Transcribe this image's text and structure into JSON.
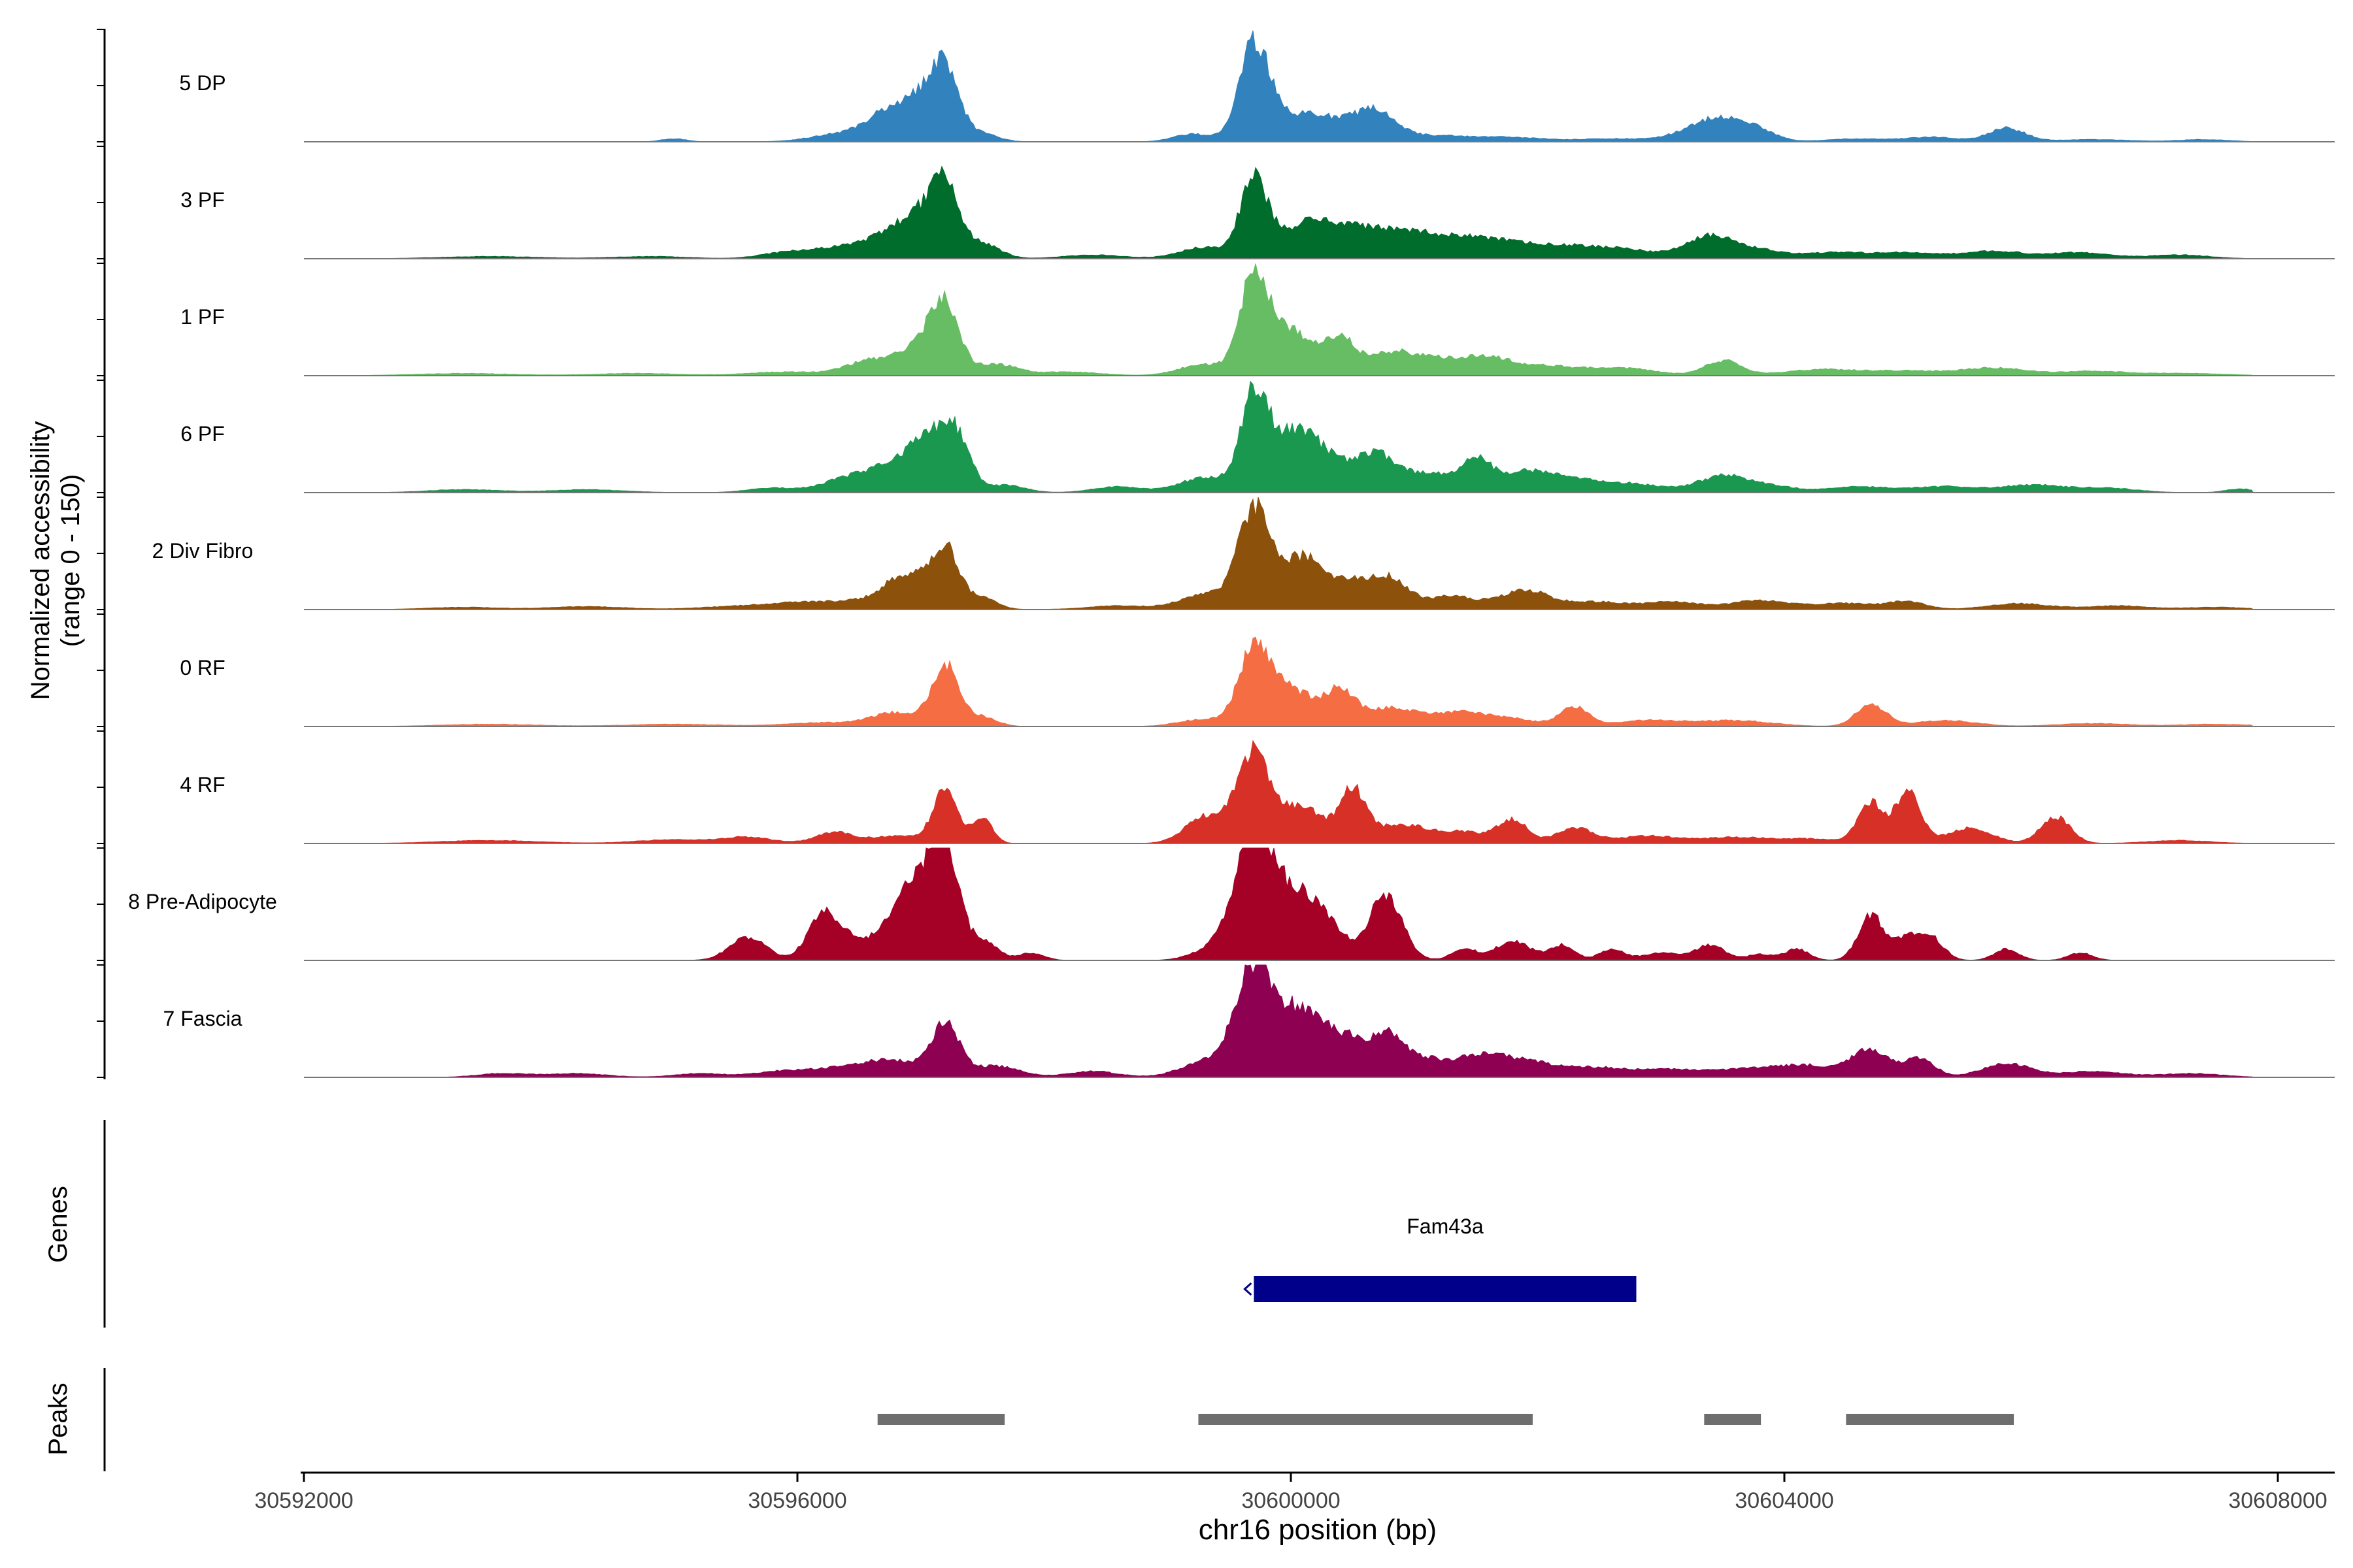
{
  "chart_data": {
    "type": "area",
    "title": "",
    "xlabel": "chr16 position (bp)",
    "ylabel_line1": "Normalized accessibility",
    "ylabel_line2": "(range 0 - 150)",
    "xlim": [
      30592000,
      30608400
    ],
    "ylim": [
      0,
      150
    ],
    "x_ticks": [
      30592000,
      30596000,
      30600000,
      30604000,
      30608000
    ],
    "x_tick_labels": [
      "30592000",
      "30596000",
      "30600000",
      "30604000",
      "30608000"
    ],
    "track_range": [
      30592000,
      30607800
    ],
    "series": [
      {
        "name": "5 DP",
        "color": "#3182BD",
        "peaks": [
          [
            30595000,
            4,
            100
          ],
          [
            30596400,
            12,
            250
          ],
          [
            30596700,
            25,
            150
          ],
          [
            30597000,
            55,
            180
          ],
          [
            30597200,
            80,
            110
          ],
          [
            30597500,
            10,
            130
          ],
          [
            30599200,
            10,
            150
          ],
          [
            30599700,
            120,
            120
          ],
          [
            30600000,
            30,
            250
          ],
          [
            30600400,
            20,
            250
          ],
          [
            30600700,
            30,
            150
          ],
          [
            30601100,
            8,
            350
          ],
          [
            30601800,
            5,
            300
          ],
          [
            30602600,
            4,
            250
          ],
          [
            30603200,
            8,
            200
          ],
          [
            30603500,
            30,
            200
          ],
          [
            30603800,
            10,
            150
          ],
          [
            30604600,
            4,
            250
          ],
          [
            30605200,
            6,
            200
          ],
          [
            30605800,
            18,
            150
          ],
          [
            30606500,
            3,
            300
          ],
          [
            30607400,
            3,
            200
          ]
        ]
      },
      {
        "name": "3 PF",
        "color": "#006D2C",
        "peaks": [
          [
            30593500,
            3,
            400
          ],
          [
            30594800,
            3,
            300
          ],
          [
            30595900,
            8,
            200
          ],
          [
            30596300,
            12,
            200
          ],
          [
            30596700,
            25,
            200
          ],
          [
            30597000,
            50,
            170
          ],
          [
            30597200,
            85,
            110
          ],
          [
            30597500,
            20,
            140
          ],
          [
            30598400,
            5,
            250
          ],
          [
            30599300,
            15,
            200
          ],
          [
            30599700,
            100,
            110
          ],
          [
            30600100,
            40,
            220
          ],
          [
            30600500,
            30,
            250
          ],
          [
            30600900,
            25,
            250
          ],
          [
            30601300,
            20,
            250
          ],
          [
            30601700,
            18,
            250
          ],
          [
            30602200,
            15,
            250
          ],
          [
            30602700,
            12,
            250
          ],
          [
            30603400,
            30,
            200
          ],
          [
            30603800,
            10,
            200
          ],
          [
            30604400,
            8,
            250
          ],
          [
            30605000,
            8,
            250
          ],
          [
            30605700,
            10,
            250
          ],
          [
            30606400,
            8,
            250
          ],
          [
            30607200,
            5,
            250
          ]
        ]
      },
      {
        "name": "1 PF",
        "color": "#66BD63",
        "peaks": [
          [
            30593300,
            3,
            400
          ],
          [
            30594700,
            3,
            350
          ],
          [
            30595900,
            5,
            300
          ],
          [
            30596600,
            20,
            200
          ],
          [
            30597000,
            40,
            160
          ],
          [
            30597200,
            85,
            110
          ],
          [
            30597600,
            15,
            180
          ],
          [
            30598200,
            5,
            250
          ],
          [
            30599300,
            15,
            200
          ],
          [
            30599700,
            130,
            110
          ],
          [
            30600000,
            60,
            180
          ],
          [
            30600400,
            45,
            120
          ],
          [
            30600800,
            30,
            200
          ],
          [
            30601200,
            18,
            200
          ],
          [
            30601600,
            22,
            200
          ],
          [
            30602100,
            12,
            250
          ],
          [
            30602700,
            10,
            250
          ],
          [
            30603500,
            20,
            150
          ],
          [
            30604300,
            8,
            300
          ],
          [
            30605000,
            6,
            300
          ],
          [
            30605700,
            10,
            250
          ],
          [
            30606500,
            6,
            300
          ],
          [
            30607300,
            3,
            300
          ]
        ]
      },
      {
        "name": "6 PF",
        "color": "#1A9850",
        "peaks": [
          [
            30593300,
            4,
            300
          ],
          [
            30594300,
            4,
            300
          ],
          [
            30595800,
            6,
            200
          ],
          [
            30596400,
            18,
            200
          ],
          [
            30596800,
            35,
            200
          ],
          [
            30597100,
            65,
            160
          ],
          [
            30597300,
            55,
            110
          ],
          [
            30597700,
            10,
            150
          ],
          [
            30598600,
            8,
            200
          ],
          [
            30599300,
            20,
            200
          ],
          [
            30599700,
            120,
            110
          ],
          [
            30600000,
            70,
            180
          ],
          [
            30600300,
            40,
            200
          ],
          [
            30600700,
            45,
            150
          ],
          [
            30601100,
            25,
            200
          ],
          [
            30601500,
            40,
            130
          ],
          [
            30601900,
            25,
            200
          ],
          [
            30602300,
            15,
            250
          ],
          [
            30602800,
            10,
            250
          ],
          [
            30603500,
            22,
            200
          ],
          [
            30603900,
            8,
            200
          ],
          [
            30604600,
            8,
            250
          ],
          [
            30605300,
            8,
            250
          ],
          [
            30606000,
            10,
            250
          ],
          [
            30606600,
            6,
            250
          ],
          [
            30607700,
            5,
            120
          ]
        ]
      },
      {
        "name": "2 Div Fibro",
        "color": "#8C510A",
        "peaks": [
          [
            30593300,
            3,
            300
          ],
          [
            30594300,
            4,
            300
          ],
          [
            30595500,
            4,
            300
          ],
          [
            30596000,
            8,
            250
          ],
          [
            30596500,
            10,
            250
          ],
          [
            30596900,
            45,
            180
          ],
          [
            30597200,
            75,
            110
          ],
          [
            30597500,
            15,
            120
          ],
          [
            30598600,
            5,
            250
          ],
          [
            30599300,
            20,
            200
          ],
          [
            30599700,
            130,
            130
          ],
          [
            30600100,
            70,
            180
          ],
          [
            30600500,
            30,
            150
          ],
          [
            30600800,
            40,
            150
          ],
          [
            30601300,
            18,
            200
          ],
          [
            30601900,
            25,
            200
          ],
          [
            30602500,
            10,
            250
          ],
          [
            30603100,
            10,
            200
          ],
          [
            30603800,
            12,
            250
          ],
          [
            30604500,
            8,
            250
          ],
          [
            30605000,
            10,
            150
          ],
          [
            30605900,
            8,
            250
          ],
          [
            30606700,
            5,
            250
          ],
          [
            30607500,
            3,
            250
          ]
        ]
      },
      {
        "name": "0 RF",
        "color": "#F46D43",
        "peaks": [
          [
            30593500,
            3,
            400
          ],
          [
            30595000,
            3,
            400
          ],
          [
            30596200,
            5,
            300
          ],
          [
            30596800,
            18,
            200
          ],
          [
            30597200,
            80,
            110
          ],
          [
            30597500,
            12,
            120
          ],
          [
            30599300,
            10,
            200
          ],
          [
            30599700,
            100,
            120
          ],
          [
            30600000,
            50,
            180
          ],
          [
            30600400,
            45,
            120
          ],
          [
            30600800,
            25,
            200
          ],
          [
            30601300,
            15,
            200
          ],
          [
            30601700,
            12,
            250
          ],
          [
            30602300,
            25,
            120
          ],
          [
            30602900,
            8,
            250
          ],
          [
            30603600,
            8,
            300
          ],
          [
            30604700,
            30,
            120
          ],
          [
            30605300,
            8,
            250
          ],
          [
            30606500,
            4,
            300
          ],
          [
            30607500,
            3,
            300
          ]
        ]
      },
      {
        "name": "4 RF",
        "color": "#D73027",
        "peaks": [
          [
            30593500,
            4,
            400
          ],
          [
            30595000,
            5,
            300
          ],
          [
            30595600,
            8,
            200
          ],
          [
            30596300,
            15,
            150
          ],
          [
            30596800,
            10,
            200
          ],
          [
            30597200,
            70,
            100
          ],
          [
            30597500,
            35,
            80
          ],
          [
            30599300,
            35,
            160
          ],
          [
            30599700,
            120,
            140
          ],
          [
            30600100,
            50,
            150
          ],
          [
            30600500,
            70,
            110
          ],
          [
            30600900,
            25,
            200
          ],
          [
            30601400,
            15,
            200
          ],
          [
            30601800,
            30,
            120
          ],
          [
            30602300,
            20,
            150
          ],
          [
            30602900,
            10,
            250
          ],
          [
            30603600,
            8,
            250
          ],
          [
            30604200,
            6,
            250
          ],
          [
            30604700,
            55,
            100
          ],
          [
            30605000,
            70,
            100
          ],
          [
            30605500,
            20,
            180
          ],
          [
            30606200,
            35,
            120
          ],
          [
            30607200,
            4,
            250
          ]
        ]
      },
      {
        "name": "8 Pre-Adipocyte",
        "color": "#A50026",
        "peaks": [
          [
            30595600,
            30,
            150
          ],
          [
            30596200,
            55,
            120
          ],
          [
            30596400,
            25,
            150
          ],
          [
            30596800,
            50,
            160
          ],
          [
            30597000,
            80,
            140
          ],
          [
            30597200,
            140,
            110
          ],
          [
            30597500,
            25,
            120
          ],
          [
            30597900,
            10,
            100
          ],
          [
            30599300,
            10,
            150
          ],
          [
            30599500,
            30,
            120
          ],
          [
            30599700,
            155,
            130
          ],
          [
            30600000,
            90,
            180
          ],
          [
            30600300,
            40,
            150
          ],
          [
            30600700,
            30,
            120
          ],
          [
            30600800,
            60,
            130
          ],
          [
            30601400,
            15,
            100
          ],
          [
            30601800,
            25,
            150
          ],
          [
            30602200,
            20,
            100
          ],
          [
            30602600,
            15,
            100
          ],
          [
            30603000,
            10,
            150
          ],
          [
            30603400,
            20,
            120
          ],
          [
            30603800,
            8,
            100
          ],
          [
            30604100,
            15,
            100
          ],
          [
            30604700,
            60,
            100
          ],
          [
            30605000,
            30,
            120
          ],
          [
            30605200,
            25,
            100
          ],
          [
            30605800,
            15,
            100
          ],
          [
            30606400,
            10,
            100
          ]
        ]
      },
      {
        "name": "7 Fascia",
        "color": "#8E0152",
        "peaks": [
          [
            30593600,
            5,
            200
          ],
          [
            30594200,
            5,
            250
          ],
          [
            30595200,
            5,
            200
          ],
          [
            30595900,
            8,
            250
          ],
          [
            30596400,
            10,
            250
          ],
          [
            30596800,
            20,
            250
          ],
          [
            30597200,
            65,
            110
          ],
          [
            30597600,
            15,
            200
          ],
          [
            30598400,
            8,
            200
          ],
          [
            30599300,
            20,
            200
          ],
          [
            30599700,
            140,
            150
          ],
          [
            30600100,
            90,
            200
          ],
          [
            30600500,
            40,
            150
          ],
          [
            30600800,
            55,
            130
          ],
          [
            30601100,
            20,
            150
          ],
          [
            30601500,
            25,
            200
          ],
          [
            30601900,
            20,
            250
          ],
          [
            30602500,
            12,
            250
          ],
          [
            30603100,
            10,
            250
          ],
          [
            30603700,
            10,
            250
          ],
          [
            30604200,
            15,
            250
          ],
          [
            30604700,
            35,
            150
          ],
          [
            30605100,
            25,
            120
          ],
          [
            30605800,
            18,
            200
          ],
          [
            30606500,
            8,
            250
          ],
          [
            30607300,
            5,
            250
          ]
        ]
      }
    ],
    "genes_label": "Genes",
    "genes": [
      {
        "name": "Fam43a",
        "start": 30599700,
        "end": 30602800,
        "color": "#00008B"
      }
    ],
    "peaks_label": "Peaks",
    "peak_regions": [
      [
        30596650,
        30597680
      ],
      [
        30599250,
        30601960
      ],
      [
        30603350,
        30603810
      ],
      [
        30604500,
        30605860
      ]
    ]
  }
}
